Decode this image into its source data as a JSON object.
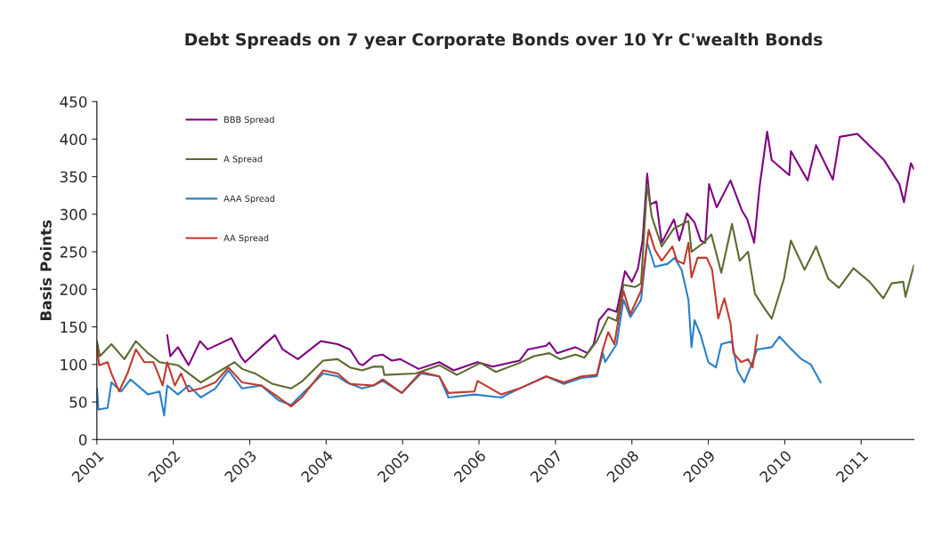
{
  "chart_data": {
    "type": "line",
    "title": "Debt Spreads on 7 year Corporate Bonds over 10 Yr C'wealth Bonds",
    "ylabel": "Basis Points",
    "xlim": [
      2001,
      2011.69
    ],
    "xticks": [
      2001,
      2002,
      2003,
      2004,
      2005,
      2006,
      2007,
      2008,
      2009,
      2010,
      2011
    ],
    "ylim": [
      0,
      450
    ],
    "yticks": [
      0,
      50,
      100,
      150,
      200,
      250,
      300,
      350,
      400,
      450
    ],
    "grid": false,
    "legend": "top left",
    "marker": "none",
    "line_style": "solid",
    "series": [
      {
        "name": "BBB Spread",
        "color": "#800080",
        "x": [
          2001.92,
          2001.96,
          2002.06,
          2002.2,
          2002.35,
          2002.45,
          2002.76,
          2002.88,
          2002.94,
          2003.15,
          2003.33,
          2003.43,
          2003.63,
          2003.93,
          2004.15,
          2004.31,
          2004.43,
          2004.48,
          2004.62,
          2004.74,
          2004.86,
          2004.97,
          2005.21,
          2005.48,
          2005.67,
          2005.98,
          2006.18,
          2006.53,
          2006.64,
          2006.88,
          2006.92,
          2007.02,
          2007.26,
          2007.42,
          2007.5,
          2007.57,
          2007.69,
          2007.8,
          2007.91,
          2008.0,
          2008.08,
          2008.14,
          2008.2,
          2008.24,
          2008.32,
          2008.39,
          2008.55,
          2008.62,
          2008.72,
          2008.82,
          2008.9,
          2008.96,
          2009.01,
          2009.11,
          2009.29,
          2009.44,
          2009.51,
          2009.6,
          2009.67,
          2009.77,
          2009.83,
          2010.06,
          2010.08,
          2010.3,
          2010.41,
          2010.63,
          2010.72,
          2010.95,
          2011.3,
          2011.5,
          2011.56,
          2011.65,
          2011.69
        ],
        "values": [
          139,
          111,
          123,
          99,
          131,
          120,
          135,
          111,
          103,
          123,
          139,
          120,
          107,
          131,
          127,
          120,
          101,
          99,
          111,
          113,
          105,
          107,
          94,
          103,
          92,
          103,
          97,
          105,
          120,
          125,
          129,
          115,
          123,
          115,
          127,
          159,
          174,
          170,
          224,
          210,
          228,
          265,
          354,
          313,
          317,
          262,
          293,
          265,
          301,
          289,
          265,
          262,
          340,
          309,
          345,
          305,
          293,
          262,
          336,
          410,
          372,
          352,
          384,
          345,
          392,
          346,
          403,
          407,
          372,
          340,
          316,
          368,
          360
        ]
      },
      {
        "name": "A Spread",
        "color": "#5a6b2e",
        "x": [
          2001.0,
          2001.04,
          2001.19,
          2001.36,
          2001.51,
          2001.67,
          2001.82,
          2002.06,
          2002.2,
          2002.36,
          2002.8,
          2002.9,
          2003.07,
          2003.3,
          2003.54,
          2003.68,
          2003.96,
          2004.15,
          2004.31,
          2004.47,
          2004.62,
          2004.74,
          2004.76,
          2005.17,
          2005.48,
          2005.71,
          2006.02,
          2006.22,
          2006.53,
          2006.72,
          2006.92,
          2007.06,
          2007.26,
          2007.38,
          2007.54,
          2007.69,
          2007.8,
          2007.89,
          2008.04,
          2008.12,
          2008.2,
          2008.26,
          2008.39,
          2008.55,
          2008.74,
          2008.78,
          2008.94,
          2009.04,
          2009.17,
          2009.31,
          2009.41,
          2009.52,
          2009.61,
          2009.74,
          2009.83,
          2009.99,
          2010.08,
          2010.26,
          2010.41,
          2010.57,
          2010.71,
          2010.9,
          2011.11,
          2011.29,
          2011.4,
          2011.55,
          2011.58,
          2011.69
        ],
        "values": [
          131,
          111,
          127,
          107,
          131,
          115,
          103,
          99,
          88,
          76,
          103,
          94,
          88,
          74,
          68,
          77,
          105,
          107,
          96,
          92,
          97,
          97,
          86,
          88,
          99,
          86,
          102,
          90,
          102,
          111,
          115,
          107,
          113,
          109,
          131,
          163,
          158,
          206,
          203,
          208,
          340,
          297,
          257,
          281,
          291,
          250,
          262,
          273,
          222,
          287,
          238,
          250,
          194,
          174,
          161,
          214,
          265,
          226,
          257,
          214,
          202,
          228,
          210,
          188,
          208,
          210,
          190,
          232
        ]
      },
      {
        "name": "AAA Spread",
        "color": "#2a7fc8",
        "x": [
          2001.0,
          2001.02,
          2001.14,
          2001.19,
          2001.32,
          2001.44,
          2001.67,
          2001.82,
          2001.88,
          2001.92,
          2002.06,
          2002.2,
          2002.36,
          2002.55,
          2002.72,
          2002.9,
          2003.15,
          2003.38,
          2003.54,
          2003.68,
          2003.96,
          2004.15,
          2004.27,
          2004.47,
          2004.62,
          2004.74,
          2004.99,
          2005.24,
          2005.48,
          2005.6,
          2005.94,
          2006.29,
          2006.53,
          2006.88,
          2007.11,
          2007.34,
          2007.54,
          2007.62,
          2007.65,
          2007.8,
          2007.89,
          2007.98,
          2008.12,
          2008.2,
          2008.3,
          2008.47,
          2008.56,
          2008.65,
          2008.74,
          2008.78,
          2008.82,
          2008.9,
          2009.0,
          2009.1,
          2009.17,
          2009.31,
          2009.38,
          2009.47,
          2009.55,
          2009.64,
          2009.83,
          2009.93,
          2010.06,
          2010.22,
          2010.34,
          2010.47
        ],
        "values": [
          68,
          40,
          42,
          76,
          64,
          80,
          60,
          64,
          32,
          72,
          60,
          72,
          56,
          68,
          92,
          68,
          72,
          52,
          46,
          60,
          88,
          84,
          76,
          68,
          72,
          78,
          62,
          88,
          84,
          56,
          60,
          56,
          68,
          84,
          74,
          82,
          84,
          115,
          103,
          127,
          186,
          163,
          186,
          262,
          230,
          234,
          242,
          226,
          186,
          123,
          159,
          139,
          103,
          96,
          127,
          131,
          92,
          76,
          96,
          120,
          123,
          137,
          123,
          107,
          100,
          76
        ]
      },
      {
        "name": "AA Spread",
        "color": "#c0392b",
        "x": [
          2001.0,
          2001.03,
          2001.14,
          2001.19,
          2001.29,
          2001.4,
          2001.51,
          2001.62,
          2001.74,
          2001.8,
          2001.86,
          2001.92,
          2002.02,
          2002.1,
          2002.2,
          2002.36,
          2002.55,
          2002.72,
          2002.9,
          2003.15,
          2003.38,
          2003.54,
          2003.68,
          2003.96,
          2004.15,
          2004.31,
          2004.62,
          2004.74,
          2004.99,
          2005.24,
          2005.48,
          2005.6,
          2005.94,
          2005.98,
          2006.29,
          2006.53,
          2006.88,
          2007.11,
          2007.34,
          2007.54,
          2007.62,
          2007.69,
          2007.77,
          2007.89,
          2007.98,
          2008.12,
          2008.22,
          2008.3,
          2008.39,
          2008.53,
          2008.59,
          2008.68,
          2008.74,
          2008.78,
          2008.86,
          2008.98,
          2009.05,
          2009.13,
          2009.21,
          2009.29,
          2009.33,
          2009.43,
          2009.52,
          2009.58,
          2009.64
        ],
        "values": [
          123,
          99,
          103,
          88,
          64,
          88,
          120,
          103,
          103,
          88,
          72,
          103,
          72,
          88,
          64,
          68,
          76,
          96,
          76,
          72,
          56,
          44,
          56,
          92,
          88,
          74,
          72,
          80,
          62,
          90,
          84,
          62,
          64,
          78,
          60,
          68,
          84,
          76,
          84,
          86,
          120,
          143,
          127,
          198,
          167,
          198,
          279,
          253,
          238,
          257,
          238,
          234,
          262,
          216,
          242,
          242,
          226,
          161,
          188,
          155,
          115,
          103,
          107,
          96,
          139
        ]
      }
    ]
  }
}
